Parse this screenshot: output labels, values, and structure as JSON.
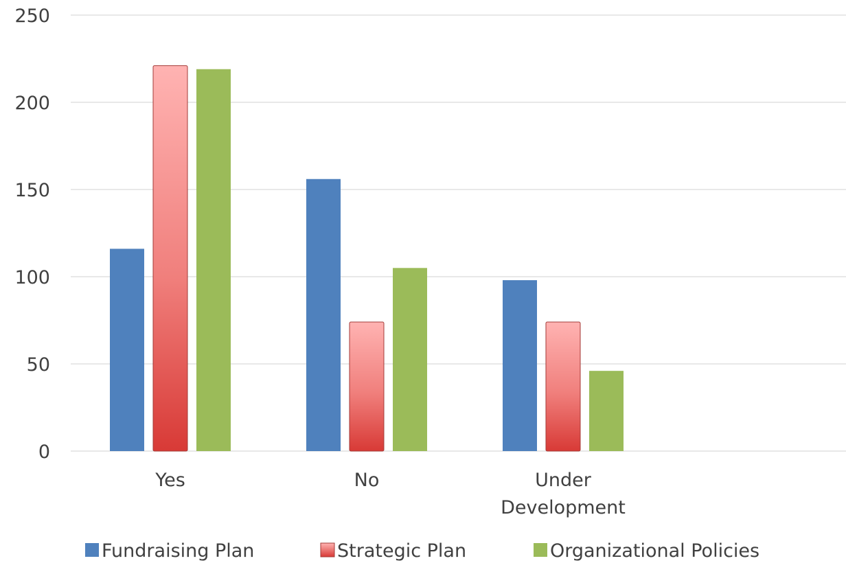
{
  "chart_data": {
    "type": "bar",
    "categories": [
      "Yes",
      "No",
      "Under Development"
    ],
    "category_label_lines": [
      [
        "Yes"
      ],
      [
        "No"
      ],
      [
        "Under",
        "Development"
      ]
    ],
    "series": [
      {
        "name": "Fundraising Plan",
        "values": [
          116,
          156,
          98
        ],
        "color": "#4F81BD"
      },
      {
        "name": "Strategic Plan",
        "values": [
          221,
          74,
          74
        ],
        "color": "#E0504E"
      },
      {
        "name": "Organizational Policies",
        "values": [
          219,
          105,
          46
        ],
        "color": "#9BBB59"
      }
    ],
    "title": "",
    "xlabel": "",
    "ylabel": "",
    "ylim": [
      0,
      250
    ],
    "yticks": [
      0,
      50,
      100,
      150,
      200,
      250
    ],
    "grid": true,
    "legend_position": "bottom"
  }
}
